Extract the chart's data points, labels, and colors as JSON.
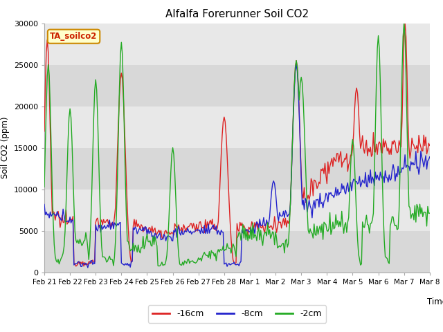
{
  "title": "Alfalfa Forerunner Soil CO2",
  "ylabel": "Soil CO2 (ppm)",
  "xlabel": "Time",
  "xlim": [
    0,
    390
  ],
  "ylim": [
    0,
    30000
  ],
  "yticks": [
    0,
    5000,
    10000,
    15000,
    20000,
    25000,
    30000
  ],
  "xtick_labels": [
    "Feb 21",
    "Feb 22",
    "Feb 23",
    "Feb 24",
    "Feb 25",
    "Feb 26",
    "Feb 27",
    "Feb 28",
    "Mar 1",
    "Mar 2",
    "Mar 3",
    "Mar 4",
    "Mar 5",
    "Mar 6",
    "Mar 7",
    "Mar 8"
  ],
  "xtick_positions": [
    0,
    26,
    52,
    78,
    104,
    130,
    156,
    182,
    208,
    234,
    260,
    286,
    312,
    338,
    364,
    390
  ],
  "colors": {
    "red": "#dd2222",
    "blue": "#2222cc",
    "green": "#22aa22"
  },
  "line_width": 1.0,
  "bg_bands": [
    [
      0,
      5000,
      "#d8d8d8"
    ],
    [
      5000,
      10000,
      "#e8e8e8"
    ],
    [
      10000,
      15000,
      "#d8d8d8"
    ],
    [
      15000,
      20000,
      "#e8e8e8"
    ],
    [
      20000,
      25000,
      "#d8d8d8"
    ],
    [
      25000,
      30000,
      "#e8e8e8"
    ]
  ],
  "legend_labels": [
    "-16cm",
    "-8cm",
    "-2cm"
  ],
  "tag_label": "TA_soilco2",
  "tag_bg_color": "#ffffcc",
  "tag_edge_color": "#cc8800",
  "tag_text_color": "#cc2200"
}
